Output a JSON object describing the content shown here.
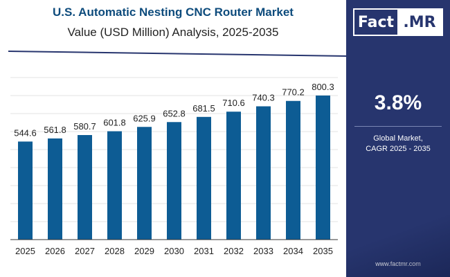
{
  "header": {
    "title": "U.S. Automatic Nesting CNC Router Market",
    "subtitle": "Value (USD Million) Analysis, 2025-2035"
  },
  "sidebar": {
    "logo_left": "Fact",
    "logo_right": ".MR",
    "cagr_value": "3.8%",
    "cagr_label_line1": "Global Market,",
    "cagr_label_line2": "CAGR 2025 - 2035",
    "url": "www.factmr.com"
  },
  "colors": {
    "bar": "#0d5c94",
    "sidebar_bg": "#27356e",
    "title": "#0d4b7c",
    "header_line": "#27356e"
  },
  "chart_data": {
    "type": "bar",
    "categories": [
      "2025",
      "2026",
      "2027",
      "2028",
      "2029",
      "2030",
      "2031",
      "2032",
      "2033",
      "2034",
      "2035"
    ],
    "series": [
      {
        "values": [
          544.6,
          561.8,
          580.7,
          601.8,
          625.9,
          652.8,
          681.5,
          710.6,
          740.3,
          770.2,
          800.3
        ]
      }
    ],
    "data_labels": [
      "544.6",
      "561.8",
      "580.7",
      "601.8",
      "625.9",
      "652.8",
      "681.5",
      "710.6",
      "740.3",
      "770.2",
      "800.3"
    ],
    "title": "U.S. Automatic Nesting CNC Router Market",
    "subtitle": "Value (USD Million) Analysis, 2025-2035",
    "xlabel": "",
    "ylabel": "",
    "ylim": [
      0,
      1000
    ],
    "grid": true,
    "legend": "none"
  }
}
